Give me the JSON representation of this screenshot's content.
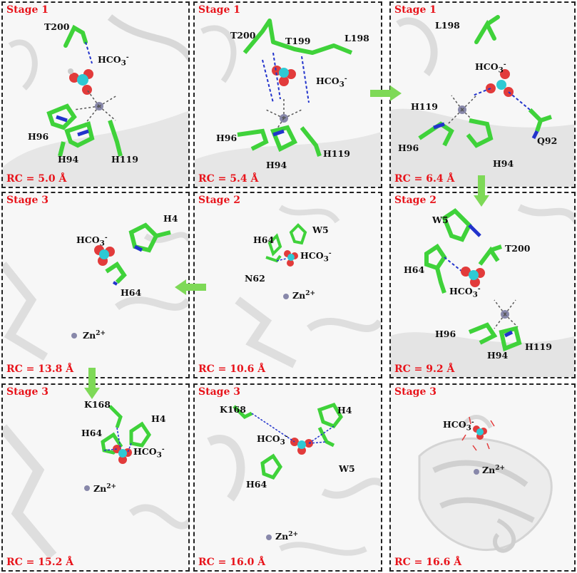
{
  "colors": {
    "label_red": "#e8141b",
    "carbon_green": "#3fd23a",
    "hco3_cyan": "#2ec9d4",
    "oxygen_red": "#e23b3b",
    "nitrogen_blue": "#2233cc",
    "arrow_green": "#7ed957"
  },
  "panels": [
    {
      "stage": "Stage 1",
      "rc": "RC = 5.0 Å",
      "labels": {
        "t200": "T200",
        "hco3": "HCO",
        "hco3sub": "3",
        "hco3sup": "-",
        "h96": "H96",
        "h94": "H94",
        "h119": "H119"
      }
    },
    {
      "stage": "Stage 1",
      "rc": "RC = 5.4 Å",
      "labels": {
        "t200": "T200",
        "t199": "T199",
        "l198": "L198",
        "hco3": "HCO",
        "hco3sub": "3",
        "hco3sup": "-",
        "h96": "H96",
        "h94": "H94",
        "h119": "H119"
      }
    },
    {
      "stage": "Stage 1",
      "rc": "RC = 6.4 Å",
      "labels": {
        "l198": "L198",
        "hco3": "HCO",
        "hco3sub": "3",
        "hco3sup": "-",
        "h119": "H119",
        "h96": "H96",
        "h94": "H94",
        "q92": "Q92"
      }
    },
    {
      "stage": "Stage 3",
      "rc": "RC = 13.8 Å",
      "labels": {
        "hco3": "HCO",
        "hco3sub": "3",
        "hco3sup": "-",
        "h4": "H4",
        "h64": "H64",
        "zn": "Zn",
        "znsup": "2+"
      }
    },
    {
      "stage": "Stage 2",
      "rc": "RC = 10.6 Å",
      "labels": {
        "w5": "W5",
        "h64": "H64",
        "hco3": "HCO",
        "hco3sub": "3",
        "hco3sup": "-",
        "n62": "N62",
        "zn": "Zn",
        "znsup": "2+"
      }
    },
    {
      "stage": "Stage 2",
      "rc": "RC = 9.2 Å",
      "labels": {
        "w5": "W5",
        "t200": "T200",
        "h64": "H64",
        "hco3": "HCO",
        "hco3sub": "3",
        "hco3sup": "-",
        "h96": "H96",
        "h94": "H94",
        "h119": "H119"
      }
    },
    {
      "stage": "Stage 3",
      "rc": "RC = 15.2 Å",
      "labels": {
        "k168": "K168",
        "h4": "H4",
        "h64": "H64",
        "hco3": "HCO",
        "hco3sub": "3",
        "hco3sup": "-",
        "zn": "Zn",
        "znsup": "2+"
      }
    },
    {
      "stage": "Stage 3",
      "rc": "RC = 16.0 Å",
      "labels": {
        "k168": "K168",
        "h4": "H4",
        "hco3": "HCO",
        "hco3sub": "3",
        "hco3sup": "-",
        "w5": "W5",
        "h64": "H64",
        "zn": "Zn",
        "znsup": "2+"
      }
    },
    {
      "stage": "Stage 3",
      "rc": "RC = 16.6 Å",
      "labels": {
        "hco3": "HCO",
        "hco3sub": "3",
        "hco3sup": "-",
        "zn": "Zn",
        "znsup": "2+"
      }
    }
  ]
}
